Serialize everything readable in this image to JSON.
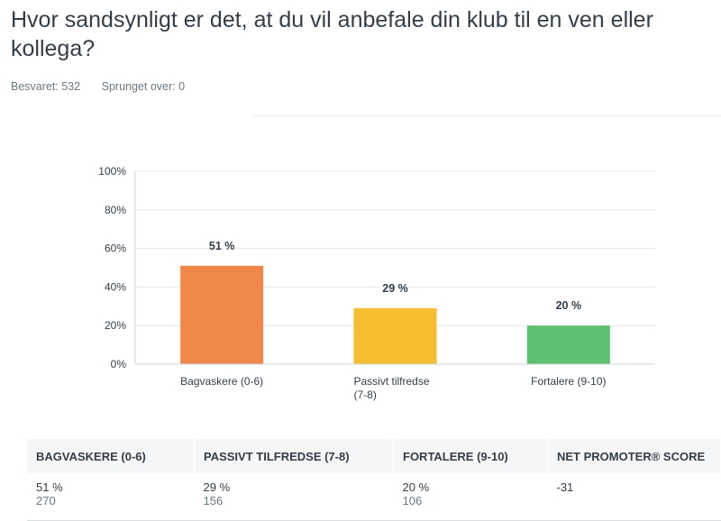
{
  "question": {
    "title": "Hvor sandsynligt er det, at du vil anbefale din klub til en ven eller kollega?",
    "answered": "Besvaret: 532",
    "skipped": "Sprunget over: 0"
  },
  "chart_data": {
    "type": "bar",
    "categories": [
      "Bagvaskere (0-6)",
      "Passivt tilfredse (7-8)",
      "Fortalere (9-10)"
    ],
    "category_label_lines": [
      [
        "Bagvaskere (0-6)"
      ],
      [
        "Passivt tilfredse",
        "(7-8)"
      ],
      [
        "Fortalere (9-10)"
      ]
    ],
    "values": [
      51,
      29,
      20
    ],
    "data_labels": [
      "51 %",
      "29 %",
      "20 %"
    ],
    "colors": [
      "#f0874a",
      "#f6bd30",
      "#5ec071"
    ],
    "yticks": [
      "0%",
      "20%",
      "40%",
      "60%",
      "80%",
      "100%"
    ],
    "ylim": [
      0,
      100
    ],
    "grid": true,
    "title": "",
    "xlabel": "",
    "ylabel": ""
  },
  "table": {
    "headers": [
      "BAGVASKERE (0-6)",
      "PASSIVT TILFREDSE (7-8)",
      "FORTALERE (9-10)",
      "NET PROMOTER® SCORE"
    ],
    "percents": [
      "51 %",
      "29 %",
      "20 %",
      "-31"
    ],
    "counts": [
      "270",
      "156",
      "106",
      ""
    ]
  }
}
